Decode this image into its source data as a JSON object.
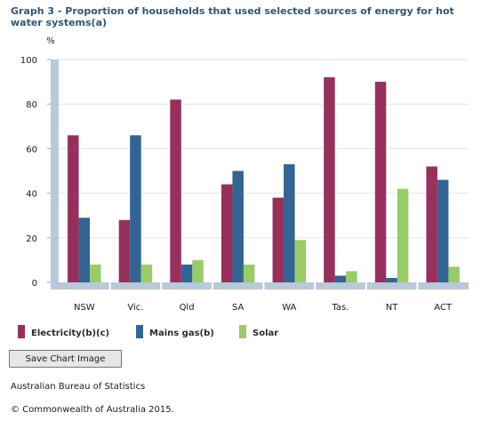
{
  "chart_data": {
    "type": "bar",
    "title": "Graph 3 - Proportion of households that used selected sources of energy for hot water systems(a)",
    "ylabel": "%",
    "xlabel": "",
    "ylim": [
      0,
      100
    ],
    "yticks": [
      "100",
      "80",
      "60",
      "40",
      "20",
      "0"
    ],
    "grid": true,
    "legend_position": "bottom",
    "categories": [
      "NSW",
      "Vic.",
      "Qld",
      "SA",
      "WA",
      "Tas.",
      "NT",
      "ACT"
    ],
    "series": [
      {
        "name": "Electricity(b)(c)",
        "color": "#98305c",
        "values": [
          66,
          28,
          82,
          44,
          38,
          92,
          90,
          52
        ]
      },
      {
        "name": "Mains gas(b)",
        "color": "#336594",
        "values": [
          29,
          66,
          8,
          50,
          53,
          3,
          2,
          46
        ]
      },
      {
        "name": "Solar",
        "color": "#99cc66",
        "values": [
          8,
          8,
          10,
          8,
          19,
          5,
          42,
          7
        ]
      }
    ]
  },
  "controls": {
    "save_chart_label": "Save Chart Image"
  },
  "footer": {
    "source": "Australian Bureau of Statistics",
    "copyright": "© Commonwealth of Australia 2015."
  }
}
